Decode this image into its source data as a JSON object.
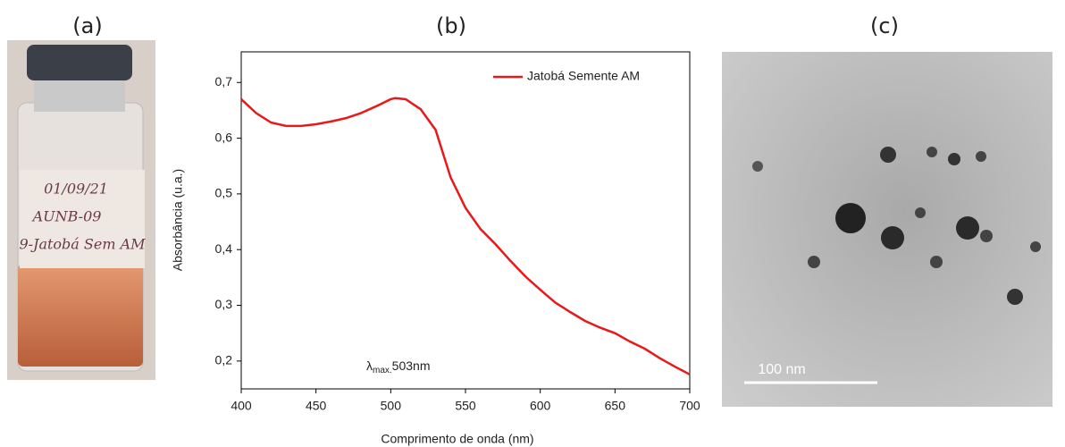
{
  "panels": [
    "(a)",
    "(b)",
    "(c)"
  ],
  "vial_label": [
    "01/09/21",
    "AUNB-09",
    "9-Jatobá Sem AM"
  ],
  "scale_bar": "100 nm",
  "chart_data": {
    "type": "line",
    "x_label": "Comprimento de onda (nm)",
    "y_label": "Absorbância (u.a.)",
    "annotation": {
      "symbol": "λ",
      "subscript": "max.",
      "text": "503nm"
    },
    "x": [
      400,
      410,
      420,
      430,
      440,
      450,
      460,
      470,
      480,
      490,
      500,
      503,
      510,
      520,
      530,
      540,
      550,
      560,
      570,
      580,
      590,
      600,
      610,
      620,
      630,
      640,
      650,
      660,
      670,
      680,
      690,
      700
    ],
    "series": [
      {
        "name": "Jatobá Semente AM",
        "color": "#e8191a",
        "values": [
          0.67,
          0.645,
          0.628,
          0.622,
          0.622,
          0.625,
          0.63,
          0.636,
          0.645,
          0.657,
          0.67,
          0.672,
          0.67,
          0.652,
          0.615,
          0.53,
          0.475,
          0.437,
          0.41,
          0.38,
          0.352,
          0.328,
          0.305,
          0.288,
          0.272,
          0.26,
          0.25,
          0.235,
          0.222,
          0.205,
          0.19,
          0.176
        ]
      }
    ],
    "xlim": [
      400,
      700
    ],
    "xticks": [
      400,
      450,
      500,
      550,
      600,
      650,
      700
    ],
    "ylim": [
      0.15,
      0.755
    ],
    "yticks": [
      {
        "value": 0.2,
        "label": "0,2"
      },
      {
        "value": 0.3,
        "label": "0,3"
      },
      {
        "value": 0.4,
        "label": "0,4"
      },
      {
        "value": 0.5,
        "label": "0,5"
      },
      {
        "value": 0.6,
        "label": "0,6"
      },
      {
        "value": 0.7,
        "label": "0,7"
      }
    ],
    "legend": "top-right",
    "grid": false
  }
}
